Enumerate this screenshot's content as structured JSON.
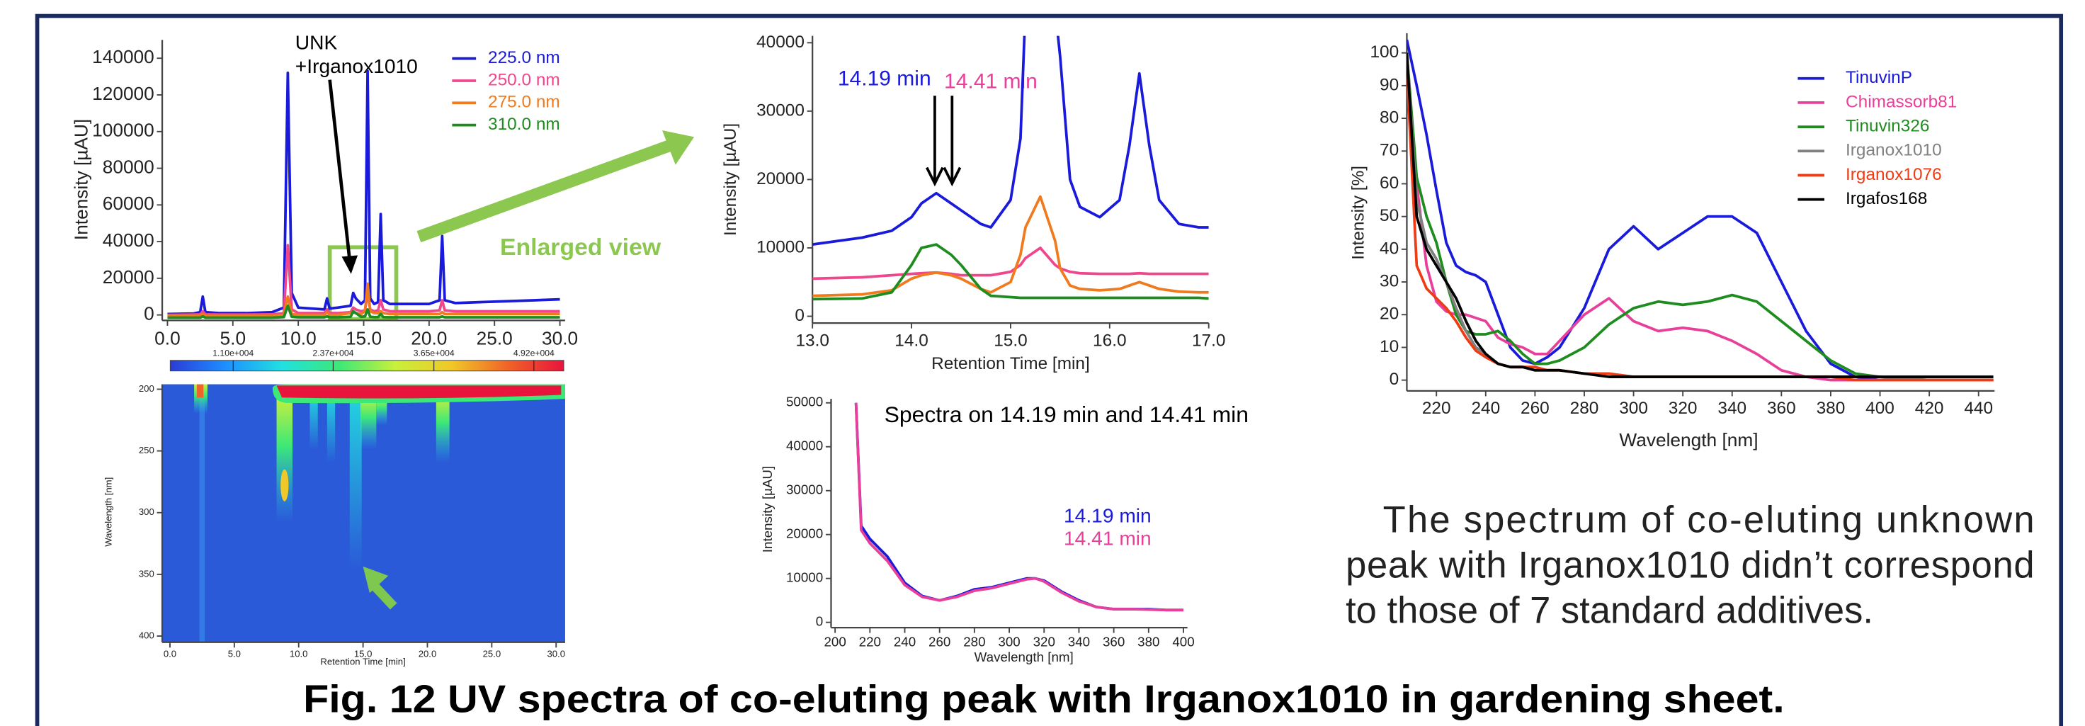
{
  "chart_data": [
    {
      "type": "line",
      "ylabel": "Intensity [µAU]",
      "xlim": [
        -0.4,
        30.4
      ],
      "ylim": [
        -3000,
        150000
      ],
      "xticks": [
        {
          "value": 0,
          "label": "0.0"
        },
        {
          "value": 5,
          "label": "5.0"
        },
        {
          "value": 10,
          "label": "10.0"
        },
        {
          "value": 15,
          "label": "15.0"
        },
        {
          "value": 20,
          "label": "20.0"
        },
        {
          "value": 25,
          "label": "25.0"
        },
        {
          "value": 30,
          "label": "30.0"
        }
      ],
      "yticks": [
        0,
        20000,
        40000,
        60000,
        80000,
        100000,
        120000,
        140000
      ],
      "annotations": [
        "UNK",
        "+Irganox1010",
        "Enlarged view"
      ],
      "x": [
        0,
        2,
        2.5,
        2.7,
        2.9,
        4,
        6,
        8,
        8.9,
        9.2,
        9.5,
        10,
        11,
        12,
        12.2,
        12.4,
        13,
        14,
        14.2,
        14.4,
        14.8,
        15.1,
        15.3,
        15.5,
        15.8,
        16.1,
        16.3,
        16.5,
        17,
        18,
        20,
        20.8,
        21,
        21.2,
        22,
        24,
        26,
        28,
        30
      ],
      "series": [
        {
          "name": "225.0 nm",
          "color": "#1a1adb",
          "values": [
            500,
            800,
            1500,
            10000,
            1500,
            1000,
            1000,
            1500,
            4000,
            132000,
            12000,
            4000,
            3500,
            3000,
            9000,
            3500,
            4000,
            5000,
            12000,
            9000,
            6000,
            8000,
            133000,
            9000,
            6000,
            7000,
            55000,
            8000,
            6000,
            6000,
            6000,
            8000,
            43000,
            8000,
            6500,
            7000,
            7500,
            8000,
            8500
          ]
        },
        {
          "name": "250.0 nm",
          "color": "#f0468c",
          "values": [
            0,
            200,
            300,
            2000,
            300,
            200,
            200,
            300,
            1000,
            38000,
            3000,
            1000,
            1000,
            1000,
            3000,
            1000,
            1000,
            1500,
            4000,
            3000,
            2000,
            2500,
            12000,
            3000,
            2000,
            2500,
            8000,
            3000,
            2000,
            2000,
            2000,
            2500,
            8000,
            2500,
            2000,
            2000,
            2000,
            2000,
            2000
          ]
        },
        {
          "name": "275.0 nm",
          "color": "#f07a1e",
          "values": [
            -500,
            -500,
            -500,
            500,
            -500,
            -500,
            -500,
            -500,
            0,
            10000,
            500,
            0,
            0,
            0,
            1500,
            0,
            0,
            1000,
            1500,
            1000,
            500,
            2000,
            17000,
            2000,
            1000,
            1000,
            2000,
            1000,
            500,
            500,
            500,
            500,
            1500,
            500,
            500,
            500,
            500,
            500,
            500
          ]
        },
        {
          "name": "310.0 nm",
          "color": "#1e8c1e",
          "values": [
            -1500,
            -1500,
            -1500,
            -800,
            -1500,
            -1500,
            -1500,
            -1500,
            -1200,
            5000,
            -1000,
            -1300,
            -1300,
            -1300,
            -800,
            -1300,
            -1300,
            -1000,
            2000,
            1000,
            -1000,
            -800,
            3000,
            -1000,
            -1200,
            -1200,
            500,
            -1200,
            -1300,
            -1300,
            -1300,
            -1300,
            -800,
            -1300,
            -1300,
            -1300,
            -1300,
            -1300,
            -1300
          ]
        }
      ]
    },
    {
      "type": "heatmap",
      "xlabel": "Retention Time [min]",
      "ylabel": "Wavelength [nm]",
      "xlim": [
        -0.6,
        30.7
      ],
      "ylim": [
        196,
        405
      ],
      "xticks": [
        {
          "value": 0,
          "label": "0.0"
        },
        {
          "value": 5,
          "label": "5.0"
        },
        {
          "value": 10,
          "label": "10.0"
        },
        {
          "value": 15,
          "label": "15.0"
        },
        {
          "value": 20,
          "label": "20.0"
        },
        {
          "value": 25,
          "label": "25.0"
        },
        {
          "value": 30,
          "label": "30.0"
        }
      ],
      "yticks": [
        200,
        250,
        300,
        350,
        400
      ],
      "colorbar": {
        "clim": [
          3000,
          53000
        ],
        "colors": [
          "#2a3cd6",
          "#1e90ff",
          "#22e0e0",
          "#3ce878",
          "#c8f03c",
          "#f0c828",
          "#f06428",
          "#e8143c"
        ],
        "ticks": [
          {
            "value": 11000,
            "label": "1.10e+004"
          },
          {
            "value": 23700,
            "label": "2.37e+004"
          },
          {
            "value": 36500,
            "label": "3.65e+004"
          },
          {
            "value": 49200,
            "label": "4.92e+004"
          }
        ]
      }
    },
    {
      "type": "line",
      "xlabel": "Retention Time [min]",
      "ylabel": "Intensity [µAU]",
      "xlim": [
        13,
        17
      ],
      "ylim": [
        -1000,
        41000
      ],
      "xticks": [
        {
          "value": 13,
          "label": "13.0"
        },
        {
          "value": 14,
          "label": "14.0"
        },
        {
          "value": 15,
          "label": "15.0"
        },
        {
          "value": 16,
          "label": "16.0"
        },
        {
          "value": 17,
          "label": "17.0"
        }
      ],
      "yticks": [
        0,
        10000,
        20000,
        30000,
        40000
      ],
      "annotations": [
        "14.19 min",
        "14.41 min"
      ],
      "x": [
        13,
        13.5,
        13.8,
        14.0,
        14.1,
        14.25,
        14.4,
        14.5,
        14.7,
        14.8,
        15.0,
        15.1,
        15.15,
        15.3,
        15.45,
        15.5,
        15.6,
        15.7,
        15.9,
        16.1,
        16.2,
        16.3,
        16.4,
        16.5,
        16.7,
        16.9,
        17
      ],
      "series": [
        {
          "color": "#1a1adb",
          "values": [
            10500,
            11500,
            12500,
            14500,
            16500,
            18000,
            16500,
            15500,
            13500,
            13000,
            17000,
            26000,
            45000,
            80000,
            45000,
            38000,
            20000,
            16000,
            14500,
            17000,
            25000,
            35500,
            25000,
            17000,
            13500,
            13000,
            13000
          ]
        },
        {
          "color": "#f0468c",
          "values": [
            5500,
            5700,
            6000,
            6200,
            6300,
            6400,
            6200,
            6000,
            6000,
            6000,
            6500,
            7500,
            8500,
            10000,
            7500,
            7000,
            6500,
            6300,
            6200,
            6200,
            6200,
            6300,
            6200,
            6200,
            6200,
            6200,
            6200
          ]
        },
        {
          "color": "#f07a1e",
          "values": [
            3000,
            3200,
            3800,
            5500,
            6000,
            6400,
            6000,
            5500,
            4000,
            3500,
            5000,
            9000,
            13000,
            17500,
            11000,
            7000,
            4500,
            4000,
            3800,
            4000,
            4500,
            5000,
            4500,
            4000,
            3600,
            3500,
            3500
          ]
        },
        {
          "color": "#1e8c1e",
          "values": [
            2500,
            2600,
            3500,
            7500,
            10000,
            10500,
            9000,
            7500,
            4000,
            3000,
            2800,
            2700,
            2700,
            2700,
            2700,
            2700,
            2700,
            2700,
            2700,
            2700,
            2700,
            2700,
            2700,
            2700,
            2700,
            2700,
            2600
          ]
        }
      ]
    },
    {
      "type": "line",
      "title": "Spectra on 14.19 min and 14.41 min",
      "xlabel": "Wavelength [nm]",
      "ylabel": "Intensity [µAU]",
      "xlim": [
        197.7,
        402.3
      ],
      "ylim": [
        -1200,
        50900
      ],
      "xticks": [
        200,
        220,
        240,
        260,
        280,
        300,
        320,
        340,
        360,
        380,
        400
      ],
      "yticks": [
        0,
        10000,
        20000,
        30000,
        40000,
        50000
      ],
      "x": [
        212,
        215,
        220,
        230,
        240,
        250,
        260,
        270,
        280,
        290,
        300,
        310,
        315,
        320,
        330,
        340,
        350,
        360,
        370,
        380,
        390,
        400
      ],
      "series": [
        {
          "name": "14.19 min",
          "color": "#1a1adb",
          "values": [
            50000,
            22000,
            19000,
            15000,
            9000,
            6000,
            5000,
            6000,
            7500,
            8000,
            9000,
            10000,
            10000,
            9500,
            7000,
            5000,
            3500,
            3000,
            3000,
            3000,
            2800,
            2800
          ]
        },
        {
          "name": "14.41 min",
          "color": "#e8409a",
          "values": [
            50000,
            21000,
            18000,
            14000,
            8500,
            5800,
            5000,
            5800,
            7200,
            7800,
            8800,
            9800,
            10000,
            9300,
            6800,
            4800,
            3500,
            3000,
            3000,
            2900,
            2800,
            2800
          ]
        }
      ]
    },
    {
      "type": "line",
      "xlabel": "Wavelength [nm]",
      "ylabel": "Intensity [%]",
      "xlim": [
        208,
        446.5
      ],
      "ylim": [
        -3.3,
        106
      ],
      "xticks": [
        220,
        240,
        260,
        280,
        300,
        320,
        340,
        360,
        380,
        400,
        420,
        440
      ],
      "yticks": [
        0,
        10,
        20,
        30,
        40,
        50,
        60,
        70,
        80,
        90,
        100
      ],
      "x": [
        208,
        212,
        216,
        220,
        224,
        228,
        232,
        236,
        240,
        245,
        250,
        255,
        260,
        265,
        270,
        280,
        290,
        300,
        310,
        320,
        330,
        340,
        350,
        360,
        370,
        380,
        390,
        400,
        420,
        446
      ],
      "series": [
        {
          "name": "TinuvinP",
          "color": "#1a1adb",
          "values": [
            104,
            90,
            75,
            58,
            42,
            35,
            33,
            32,
            30,
            20,
            10,
            6,
            5,
            7,
            10,
            22,
            40,
            47,
            40,
            45,
            50,
            50,
            45,
            30,
            15,
            5,
            1,
            0,
            0,
            0
          ]
        },
        {
          "name": "Chimassorb81",
          "color": "#e8409a",
          "values": [
            100,
            60,
            35,
            24,
            21,
            20,
            20,
            19,
            18,
            13,
            11,
            10,
            8,
            8,
            12,
            20,
            25,
            18,
            15,
            16,
            15,
            12,
            8,
            3,
            1,
            0,
            0,
            0,
            0,
            0
          ]
        },
        {
          "name": "Tinuvin326",
          "color": "#1e8c1e",
          "values": [
            100,
            62,
            50,
            42,
            30,
            20,
            15,
            14,
            14,
            15,
            12,
            8,
            5,
            5,
            6,
            10,
            17,
            22,
            24,
            23,
            24,
            26,
            24,
            18,
            12,
            6,
            2,
            1,
            0,
            0
          ]
        },
        {
          "name": "Irganox1010",
          "color": "#808080",
          "values": [
            100,
            55,
            42,
            37,
            30,
            22,
            15,
            10,
            8,
            5,
            4,
            4,
            3,
            3,
            3,
            2,
            2,
            1,
            1,
            1,
            1,
            1,
            1,
            1,
            1,
            1,
            1,
            1,
            0,
            0
          ]
        },
        {
          "name": "Irganox1076",
          "color": "#f03c14",
          "values": [
            95,
            35,
            28,
            25,
            22,
            18,
            13,
            9,
            7,
            5,
            4,
            4,
            4,
            3,
            3,
            2,
            2,
            1,
            1,
            1,
            1,
            1,
            1,
            1,
            1,
            1,
            0,
            0,
            0,
            0
          ]
        },
        {
          "name": "Irgafos168",
          "color": "#000000",
          "values": [
            100,
            50,
            40,
            35,
            30,
            25,
            18,
            12,
            8,
            5,
            4,
            4,
            3,
            3,
            3,
            2,
            1,
            1,
            1,
            1,
            1,
            1,
            1,
            1,
            1,
            1,
            1,
            1,
            1,
            1
          ]
        }
      ]
    }
  ],
  "text": {
    "paragraph": [
      "The spectrum of co-eluting unknown",
      "peak with Irganox1010 didn’t correspond",
      "to those of 7 standard additives."
    ],
    "caption": "Fig. 12  UV spectra of co-eluting peak with Irganox1010 in gardening sheet."
  }
}
